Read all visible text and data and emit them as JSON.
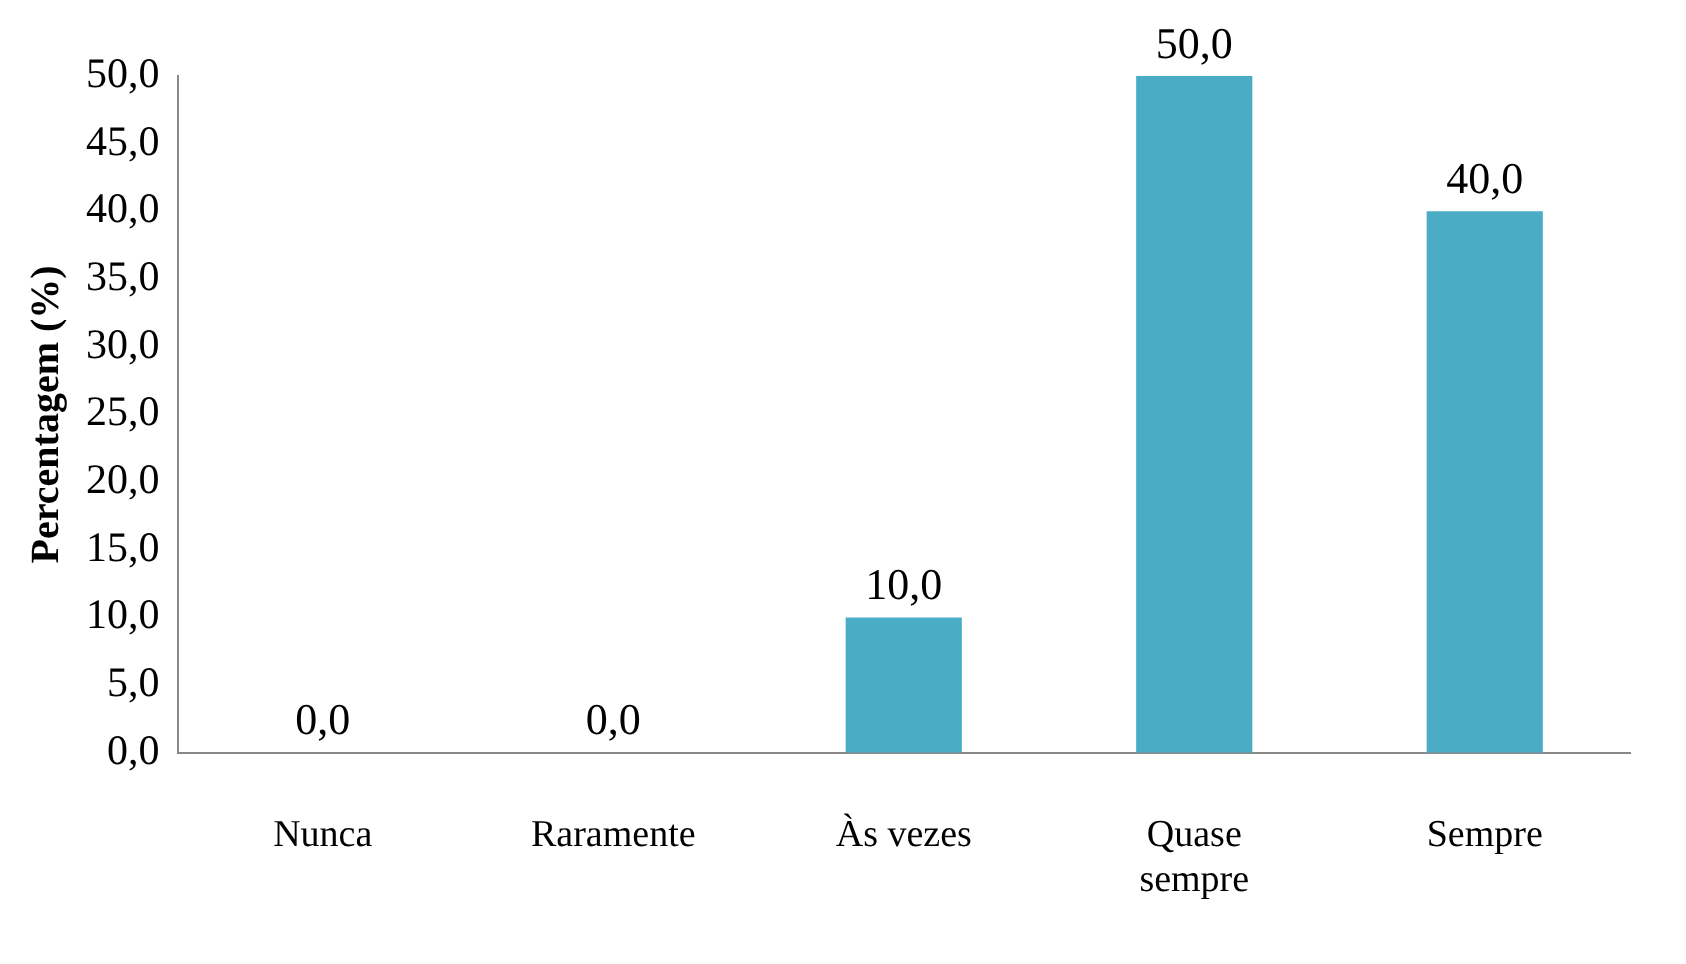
{
  "chart_data": {
    "type": "bar",
    "ylabel": "Percentagem (%)",
    "categories": [
      "Nunca",
      "Raramente",
      "Às vezes",
      "Quase sempre",
      "Sempre"
    ],
    "values": [
      0,
      0,
      10,
      50,
      40
    ],
    "color": "#4bacc6",
    "value_labels": [
      "0,0",
      "0,0",
      "10,0",
      "50,0",
      "40,0"
    ],
    "ylim": [
      0,
      50
    ],
    "yticks": [
      {
        "value": 0,
        "label": "0,0"
      },
      {
        "value": 5,
        "label": "5,0"
      },
      {
        "value": 10,
        "label": "10,0"
      },
      {
        "value": 15,
        "label": "15,0"
      },
      {
        "value": 20,
        "label": "20,0"
      },
      {
        "value": 25,
        "label": "25,0"
      },
      {
        "value": 30,
        "label": "30,0"
      },
      {
        "value": 35,
        "label": "35,0"
      },
      {
        "value": 40,
        "label": "40,0"
      },
      {
        "value": 45,
        "label": "45,0"
      },
      {
        "value": 50,
        "label": "50,0"
      }
    ],
    "grid": false,
    "legend": false
  }
}
